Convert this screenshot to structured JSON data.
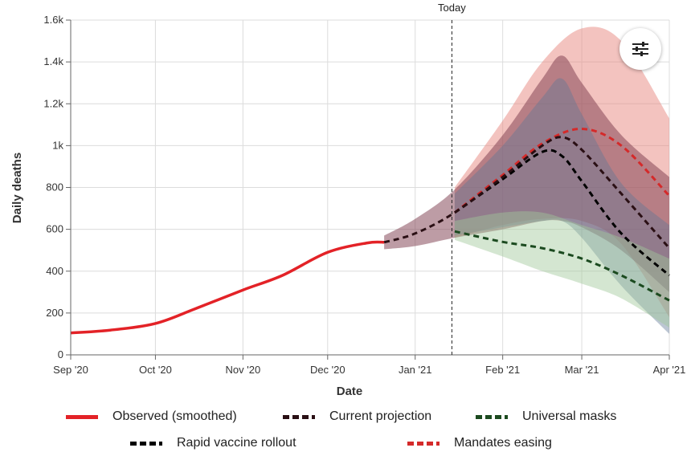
{
  "chart_data": {
    "type": "line",
    "title": "",
    "xlabel": "Date",
    "ylabel": "Daily deaths",
    "x_ticks": [
      "Sep '20",
      "Oct '20",
      "Nov '20",
      "Dec '20",
      "Jan '21",
      "Feb '21",
      "Mar '21",
      "Apr '21"
    ],
    "y_ticks": [
      "0",
      "200",
      "400",
      "600",
      "800",
      "1k",
      "1.2k",
      "1.4k",
      "1.6k"
    ],
    "xlim": [
      "2020-09-01",
      "2021-04-01"
    ],
    "ylim": [
      0,
      1600
    ],
    "grid": true,
    "legend_position": "bottom",
    "today_marker": {
      "date": "2021-01-14",
      "label": "Today"
    },
    "series": [
      {
        "name": "Observed (smoothed)",
        "color": "#e32227",
        "style": "solid",
        "x": [
          "2020-09-01",
          "2020-09-15",
          "2020-10-01",
          "2020-10-15",
          "2020-11-01",
          "2020-11-15",
          "2020-12-01",
          "2020-12-15",
          "2020-12-21"
        ],
        "y": [
          105,
          118,
          150,
          220,
          310,
          380,
          490,
          535,
          538
        ]
      },
      {
        "name": "Current projection",
        "color": "#2a0f14",
        "style": "dashed",
        "x": [
          "2020-12-21",
          "2021-01-01",
          "2021-01-15",
          "2021-02-01",
          "2021-02-15",
          "2021-02-22",
          "2021-03-01",
          "2021-03-15",
          "2021-04-01"
        ],
        "y": [
          538,
          580,
          680,
          850,
          1000,
          1040,
          980,
          770,
          510
        ],
        "lower": [
          505,
          520,
          560,
          600,
          640,
          640,
          610,
          500,
          300
        ],
        "upper": [
          570,
          650,
          790,
          1050,
          1320,
          1430,
          1300,
          1050,
          850
        ],
        "band_color": "#7c3a4c"
      },
      {
        "name": "Universal masks",
        "color": "#1b4a1f",
        "style": "dashed",
        "x": [
          "2021-01-15",
          "2021-02-01",
          "2021-02-15",
          "2021-03-01",
          "2021-03-15",
          "2021-04-01"
        ],
        "y": [
          590,
          540,
          510,
          460,
          380,
          260
        ],
        "lower": [
          550,
          470,
          400,
          340,
          270,
          130
        ],
        "upper": [
          640,
          680,
          680,
          620,
          560,
          460
        ],
        "band_color": "#9fc79a"
      },
      {
        "name": "Rapid vaccine rollout",
        "color": "#000000",
        "style": "dashed",
        "x": [
          "2021-01-15",
          "2021-02-01",
          "2021-02-15",
          "2021-02-22",
          "2021-03-01",
          "2021-03-15",
          "2021-04-01"
        ],
        "y": [
          680,
          840,
          970,
          950,
          830,
          580,
          380
        ],
        "lower": [
          570,
          610,
          640,
          640,
          560,
          330,
          100
        ],
        "upper": [
          770,
          1000,
          1230,
          1320,
          1150,
          820,
          620
        ],
        "band_color": "#607895"
      },
      {
        "name": "Mandates easing",
        "color": "#d42a2a",
        "style": "dashed",
        "x": [
          "2021-01-15",
          "2021-02-01",
          "2021-02-15",
          "2021-03-01",
          "2021-03-15",
          "2021-04-01"
        ],
        "y": [
          680,
          860,
          1010,
          1080,
          1000,
          760
        ],
        "lower": [
          560,
          620,
          650,
          640,
          530,
          180
        ],
        "upper": [
          800,
          1120,
          1400,
          1560,
          1500,
          1130
        ],
        "band_color": "#e88880"
      }
    ]
  },
  "controls": {
    "settings_icon": "sliders-icon"
  }
}
